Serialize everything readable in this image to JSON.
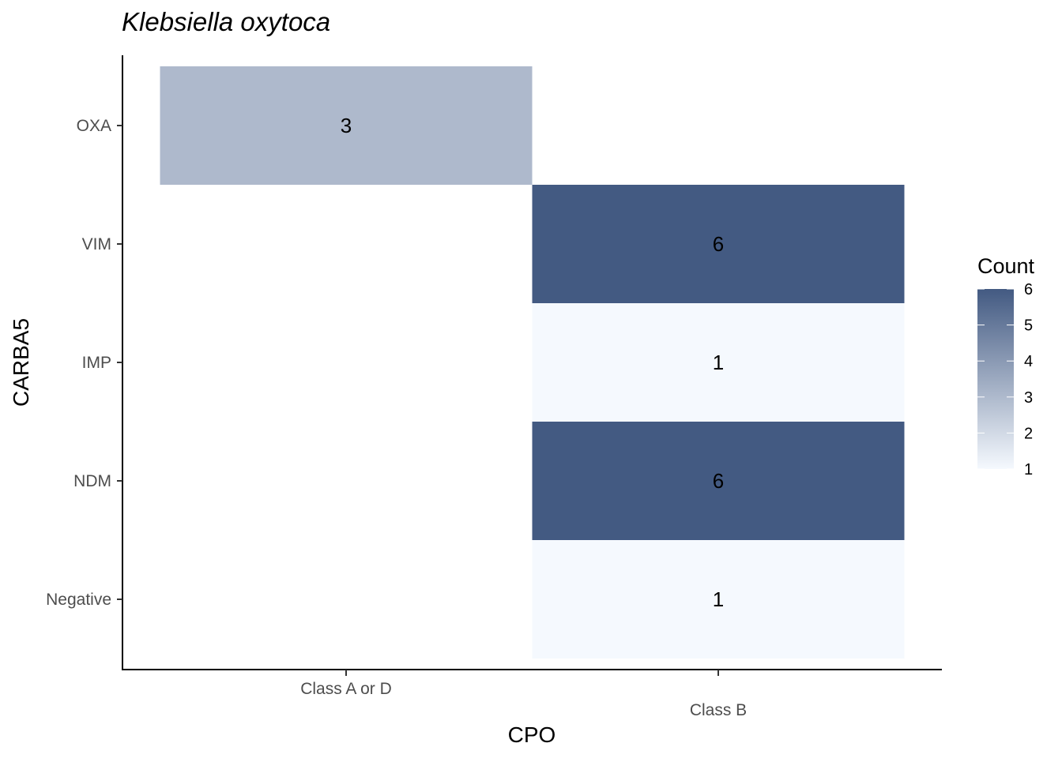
{
  "chart_data": {
    "type": "heatmap",
    "title": "Klebsiella oxytoca",
    "xlabel": "CPO",
    "ylabel": "CARBA5",
    "x_categories": [
      "Class A or D",
      "Class B"
    ],
    "y_categories": [
      "OXA",
      "VIM",
      "IMP",
      "NDM",
      "Negative"
    ],
    "cells": [
      {
        "x": "Class A or D",
        "y": "OXA",
        "value": 3,
        "label": "3"
      },
      {
        "x": "Class B",
        "y": "VIM",
        "value": 6,
        "label": "6"
      },
      {
        "x": "Class B",
        "y": "IMP",
        "value": 1,
        "label": "1"
      },
      {
        "x": "Class B",
        "y": "NDM",
        "value": 6,
        "label": "6"
      },
      {
        "x": "Class B",
        "y": "Negative",
        "value": 1,
        "label": "1"
      }
    ],
    "legend": {
      "title": "Count",
      "ticks": [
        "1",
        "2",
        "3",
        "4",
        "5",
        "6"
      ],
      "range": [
        1,
        6
      ],
      "low_color": "#f5f9fe",
      "high_color": "#435a82",
      "placement": "right"
    },
    "grid": false
  }
}
